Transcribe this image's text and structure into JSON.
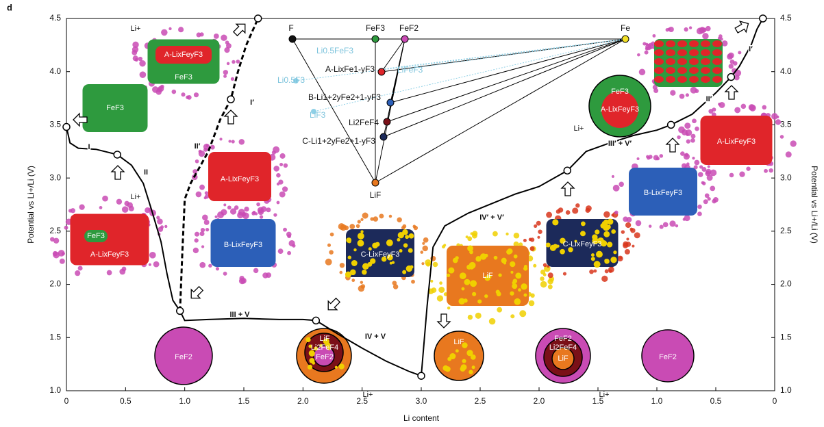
{
  "panel_label": "d",
  "chart_data": {
    "type": "line",
    "xlabel": "Li content",
    "ylabel": "Potential vs Li+/Li (V)",
    "y2label": "Potential vs Li+/Li (V)",
    "xlim": [
      0,
      3
    ],
    "x2lim": [
      3,
      0
    ],
    "xticks": [
      0,
      0.5,
      {
        "value": 1,
        "label": "1.0"
      },
      1.5,
      {
        "value": 2,
        "label": "2.0"
      },
      2.5,
      {
        "value": 3,
        "label": "3.0"
      }
    ],
    "x2ticks": [
      2.5,
      {
        "value": 2,
        "label": "2.0"
      },
      1.5,
      {
        "value": 1,
        "label": "1.0"
      },
      0.5,
      0
    ],
    "ylim": [
      1,
      4.5
    ],
    "yticks": [
      {
        "value": 1,
        "label": "1.0"
      },
      1.5,
      {
        "value": 2,
        "label": "2.0"
      },
      2.5,
      {
        "value": 3,
        "label": "3.0"
      },
      3.5,
      {
        "value": 4,
        "label": "4.0"
      },
      4.5
    ],
    "y2lim": [
      1,
      4.5
    ],
    "y2ticks": [
      {
        "value": 1,
        "label": "1.0"
      },
      1.5,
      {
        "value": 2,
        "label": "2.0"
      },
      2.5,
      {
        "value": 3,
        "label": "3.0"
      },
      3.5,
      {
        "value": 4,
        "label": "4.0"
      },
      4.5
    ],
    "series": [
      {
        "color": "#000000",
        "dash": false,
        "x": [
          0,
          0.03,
          0.1,
          0.25,
          0.43,
          0.55,
          0.65,
          0.72,
          0.8,
          0.85,
          0.9,
          0.96,
          1.0,
          1.2,
          1.5,
          1.8,
          2.0,
          2.11,
          2.3,
          2.5,
          2.7,
          2.9,
          3.0
        ],
        "values": [
          3.48,
          3.33,
          3.28,
          3.27,
          3.22,
          3.12,
          2.95,
          2.7,
          2.4,
          2.1,
          1.85,
          1.75,
          1.66,
          1.67,
          1.68,
          1.67,
          1.67,
          1.66,
          1.53,
          1.4,
          1.28,
          1.18,
          1.14
        ]
      },
      {
        "color": "#000000",
        "dash": true,
        "x": [
          0.96,
          0.98,
          1.0,
          1.05,
          1.1,
          1.2,
          1.3,
          1.39,
          1.45,
          1.52,
          1.62
        ],
        "values": [
          1.75,
          2.3,
          2.8,
          2.95,
          3.05,
          3.25,
          3.55,
          3.74,
          4.0,
          4.25,
          4.5
        ]
      },
      {
        "color": "#000000",
        "dash": false,
        "axis": "x2",
        "x": [
          3.0,
          2.95,
          2.9,
          2.8,
          2.6,
          2.4,
          2.2,
          2.0,
          1.76,
          1.6,
          1.4,
          1.2,
          1.0,
          0.88,
          0.7,
          0.5,
          0.37,
          0.3,
          0.2,
          0.15,
          0.1
        ],
        "values": [
          1.14,
          1.8,
          2.35,
          2.55,
          2.67,
          2.76,
          2.85,
          2.92,
          3.07,
          3.25,
          3.33,
          3.4,
          3.45,
          3.5,
          3.6,
          3.8,
          3.95,
          4.05,
          4.25,
          4.4,
          4.5
        ]
      },
      {
        "color": "#000000",
        "marker": "circle",
        "x": [
          0,
          0.43,
          0.96,
          1.39,
          1.62,
          2.11,
          3.0
        ],
        "values": [
          3.48,
          3.22,
          1.75,
          3.74,
          4.5,
          1.66,
          1.14
        ]
      },
      {
        "color": "#000000",
        "marker": "circle",
        "axis": "x2",
        "x": [
          1.76,
          0.88,
          0.37,
          0.1
        ],
        "values": [
          3.07,
          3.5,
          3.95,
          4.5
        ]
      }
    ],
    "annotations": [
      "I",
      "II",
      "III + V",
      "IV + V",
      "II′",
      "I′",
      "IV′ + V′",
      "III′ + V′",
      "II′",
      "I′"
    ]
  },
  "illustrations": [
    [
      "FeF3"
    ],
    [
      "A-LixFeyF3",
      "FeF3",
      "Li+"
    ],
    [
      "A-LixFeyF3"
    ],
    [
      "FeF3",
      "A-LixFeyF3",
      "Li+"
    ],
    [
      "B-LixFeyF3"
    ],
    [
      "FeF2"
    ],
    [
      "C-LixFeyF3"
    ],
    [
      "LiF",
      "Li2FeF4",
      "FeF2",
      "Li+"
    ],
    [
      "LiF"
    ],
    [
      "LiF"
    ],
    [
      "C-LixFeyF3"
    ],
    [
      "FeF2",
      "Li2FeF4",
      "LiF",
      "Li+"
    ],
    [
      "B-LixFeyF3"
    ],
    [
      "FeF2"
    ],
    [
      "A-LixFeyF3"
    ],
    [
      "FeF3",
      "A-LixFeyF3",
      "Li+"
    ]
  ],
  "ternary": {
    "vertices": [
      "F",
      "FeF3",
      "FeF2",
      "Fe",
      "LiF"
    ],
    "phases": [
      "A-LixFe1-yF3",
      "B-Li1+2yFe2+1-yF3",
      "Li2FeF4",
      "C-Li1+2yFe2+1-yF3"
    ],
    "intermediates": [
      "Li0.5FeF3",
      "LiFeF3",
      "Li0.5F3",
      "LiF3"
    ]
  }
}
